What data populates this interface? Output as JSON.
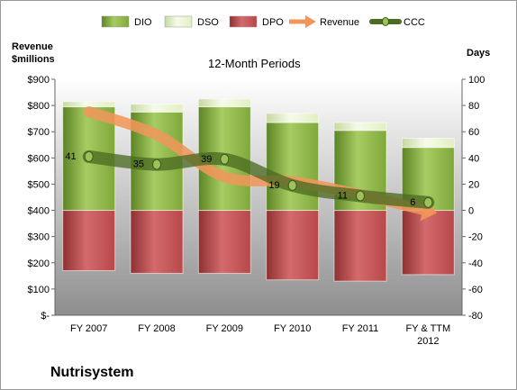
{
  "company": "Nutrisystem",
  "chart_data": {
    "type": "bar",
    "subtitle": "12-Month Periods",
    "y_left_label": "Revenue\n$millions",
    "y_right_label": "Days",
    "categories": [
      "FY 2007",
      "FY 2008",
      "FY 2009",
      "FY 2010",
      "FY 2011",
      "FY & TTM\n2012"
    ],
    "y_left": {
      "min": 0,
      "max": 900,
      "step": 100,
      "tick_labels": [
        "$-",
        "$100",
        "$200",
        "$300",
        "$400",
        "$500",
        "$600",
        "$700",
        "$800",
        "$900"
      ]
    },
    "y_right": {
      "min": -80,
      "max": 100,
      "step": 20,
      "tick_labels": [
        "-80",
        "-60",
        "-40",
        "-20",
        "0",
        "20",
        "40",
        "60",
        "80",
        "100"
      ]
    },
    "legend": {
      "position": "top",
      "entries": [
        "DIO",
        "DSO",
        "DPO",
        "Revenue",
        "CCC"
      ]
    },
    "series": [
      {
        "name": "DIO",
        "type": "stacked-bar",
        "axis": "right",
        "values": [
          79,
          75,
          79,
          67,
          61,
          48
        ]
      },
      {
        "name": "DSO",
        "type": "stacked-bar",
        "axis": "right",
        "values": [
          4,
          6,
          6,
          7,
          6,
          7
        ]
      },
      {
        "name": "DPO",
        "type": "stacked-bar",
        "axis": "right",
        "values": [
          -46,
          -48,
          -48,
          -53,
          -54,
          -49
        ]
      },
      {
        "name": "Revenue",
        "type": "line",
        "axis": "left",
        "values": [
          776,
          688,
          528,
          510,
          460,
          398
        ]
      },
      {
        "name": "CCC",
        "type": "line",
        "axis": "right",
        "values": [
          41,
          35,
          39,
          19,
          11,
          6
        ]
      }
    ],
    "data_labels": [
      "41",
      "35",
      "39",
      "19",
      "11",
      "6"
    ]
  },
  "colors": {
    "dio": "#7fa83a",
    "dso": "#e2efc3",
    "dpo": "#b8484a",
    "revenue": "#f0965a",
    "ccc": "#4b6c22",
    "plot_top": "#ffffff",
    "plot_bottom": "#8e8e8e"
  }
}
